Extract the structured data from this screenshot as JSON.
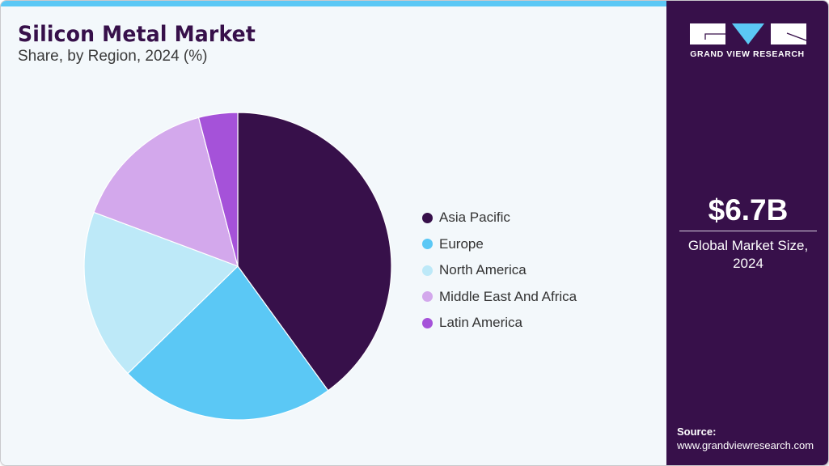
{
  "header": {
    "title": "Silicon Metal Market",
    "subtitle": "Share, by Region, 2024 (%)"
  },
  "colors": {
    "accent_bar": "#5bc8f5",
    "side_panel": "#37104a",
    "background": "#f3f8fb",
    "title": "#37104a"
  },
  "legend": {
    "items": [
      {
        "label": "Asia Pacific",
        "color": "#37104a"
      },
      {
        "label": "Europe",
        "color": "#5bc8f5"
      },
      {
        "label": "North America",
        "color": "#bde9f8"
      },
      {
        "label": "Middle East And Africa",
        "color": "#d3a8ec"
      },
      {
        "label": "Latin America",
        "color": "#a552d9"
      }
    ]
  },
  "sidebar": {
    "logo_text": "GRAND VIEW RESEARCH",
    "kpi_value": "$6.7B",
    "kpi_label_line1": "Global Market Size,",
    "kpi_label_line2": "2024",
    "source_title": "Source:",
    "source_url": "www.grandviewresearch.com"
  },
  "chart_data": {
    "type": "pie",
    "title": "Silicon Metal Market",
    "subtitle": "Share, by Region, 2024 (%)",
    "categories": [
      "Asia Pacific",
      "Europe",
      "North America",
      "Middle East And Africa",
      "Latin America"
    ],
    "values": [
      40.0,
      22.7,
      18.0,
      15.2,
      4.1
    ],
    "colors": [
      "#37104a",
      "#5bc8f5",
      "#bde9f8",
      "#d3a8ec",
      "#a552d9"
    ],
    "start_angle": "12 o'clock, clockwise",
    "legend_position": "right",
    "annotation": "$6.7B Global Market Size, 2024"
  }
}
